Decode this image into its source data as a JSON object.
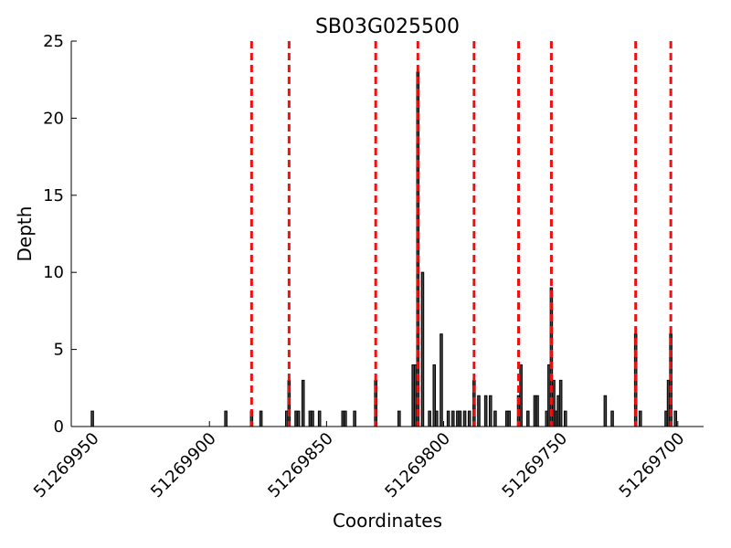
{
  "chart_data": {
    "type": "bar",
    "title": "SB03G025500",
    "xlabel": "Coordinates",
    "ylabel": "Depth",
    "x": [
      51269950,
      51269893,
      51269882,
      51269878,
      51269867,
      51269866,
      51269863,
      51269862,
      51269860,
      51269857,
      51269856,
      51269853,
      51269843,
      51269842,
      51269838,
      51269829,
      51269819,
      51269813,
      51269812,
      51269811,
      51269809,
      51269806,
      51269804,
      51269803,
      51269801,
      51269798,
      51269796,
      51269794,
      51269793,
      51269791,
      51269789,
      51269787,
      51269785,
      51269782,
      51269780,
      51269778,
      51269773,
      51269772,
      51269768,
      51269767,
      51269764,
      51269761,
      51269760,
      51269756,
      51269755,
      51269754,
      51269753,
      51269752,
      51269751,
      51269750,
      51269748,
      51269731,
      51269728,
      51269718,
      51269716,
      51269705,
      51269704,
      51269703,
      51269701
    ],
    "values": [
      1,
      1,
      1,
      1,
      1,
      3,
      1,
      1,
      3,
      1,
      1,
      1,
      1,
      1,
      1,
      3,
      1,
      4,
      4,
      23,
      10,
      1,
      4,
      1,
      6,
      1,
      1,
      1,
      1,
      1,
      1,
      3,
      2,
      2,
      2,
      1,
      1,
      1,
      2,
      4,
      1,
      2,
      2,
      1,
      4,
      9,
      3,
      1,
      2,
      3,
      1,
      2,
      1,
      6,
      1,
      1,
      3,
      6,
      1
    ],
    "color": "#444444",
    "vlines": [
      51269882,
      51269866,
      51269829,
      51269811,
      51269787,
      51269768,
      51269754,
      51269718,
      51269703
    ],
    "vline_color": "#ee1111",
    "xlim": [
      51269959,
      51269689
    ],
    "ylim": [
      0,
      25
    ],
    "xticks": [
      51269950,
      51269900,
      51269850,
      51269800,
      51269750,
      51269700
    ],
    "yticks": [
      0,
      5,
      10,
      15,
      20,
      25
    ]
  }
}
